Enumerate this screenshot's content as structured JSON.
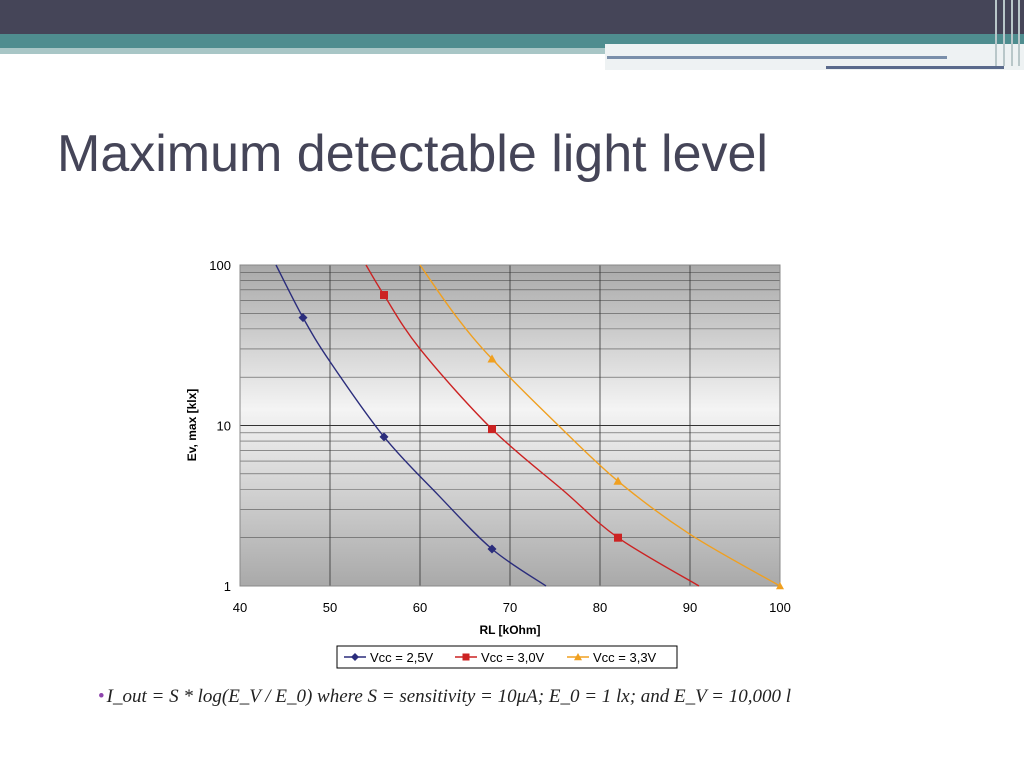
{
  "slide": {
    "title": "Maximum detectable light level",
    "bullet_text": "I_out = S * log(E_V / E_0) where S = sensitivity = 10μA; E_0 = 1 lx; and E_V = 10,000 l"
  },
  "colors": {
    "topbar": "#454558",
    "accent_teal": "#4f8d8f",
    "title": "#454558",
    "bullet": "#8e44ad"
  },
  "chart_data": {
    "type": "line",
    "title": "",
    "xlabel": "RL [kOhm]",
    "ylabel": "Ev, max [klx]",
    "xlim": [
      40,
      100
    ],
    "ylim": [
      1,
      100
    ],
    "yscale": "log",
    "grid": true,
    "x_ticks": [
      "40",
      "50",
      "60",
      "70",
      "80",
      "90",
      "100"
    ],
    "y_ticks": [
      "1",
      "10",
      "100"
    ],
    "legend_position": "bottom",
    "series": [
      {
        "name": "Vcc = 2,5V",
        "color": "#2b2d7c",
        "marker": "diamond",
        "x": [
          47,
          56,
          68
        ],
        "y": [
          47,
          8.5,
          1.7
        ],
        "curve_x": [
          44,
          47,
          50,
          56,
          62,
          68,
          74
        ],
        "curve_y": [
          100,
          47,
          25,
          8.5,
          3.7,
          1.7,
          1
        ]
      },
      {
        "name": "Vcc = 3,0V",
        "color": "#cc2222",
        "marker": "square",
        "x": [
          56,
          68,
          82
        ],
        "y": [
          65,
          9.5,
          2
        ],
        "curve_x": [
          54,
          56,
          60,
          68,
          76,
          82,
          91
        ],
        "curve_y": [
          100,
          65,
          30,
          9.5,
          3.9,
          2,
          1
        ]
      },
      {
        "name": "Vcc = 3,3V",
        "color": "#f0a020",
        "marker": "triangle",
        "x": [
          68,
          82
        ],
        "y": [
          26,
          4.5
        ],
        "curve_x": [
          60,
          64,
          68,
          75,
          82,
          90,
          100
        ],
        "curve_y": [
          100,
          48,
          26,
          10.5,
          4.5,
          2.1,
          1
        ]
      }
    ]
  }
}
